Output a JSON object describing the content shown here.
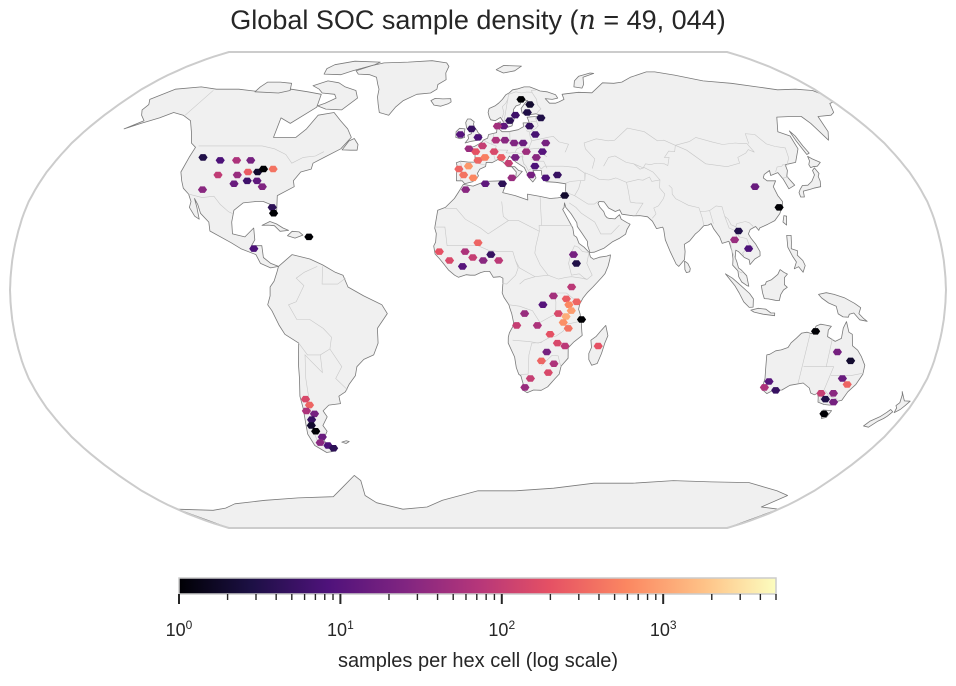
{
  "title": {
    "prefix": "Global SOC sample density  (",
    "var": "n",
    "eq": " = 49, 044",
    "suffix": ")"
  },
  "colorbar": {
    "label": "samples per hex cell (log scale)",
    "colormap": "magma",
    "scale": "log",
    "range": [
      1,
      5000
    ],
    "major_ticks": [
      {
        "base": "10",
        "exp": "0",
        "value": 1
      },
      {
        "base": "10",
        "exp": "1",
        "value": 10
      },
      {
        "base": "10",
        "exp": "2",
        "value": 100
      },
      {
        "base": "10",
        "exp": "3",
        "value": 1000
      }
    ]
  },
  "colors": {
    "land": "#f0f0f0",
    "coast": "#7a7a7a",
    "border": "#c8c8c8",
    "frame": "#cccccc"
  },
  "map": {
    "projection": "Robinson",
    "hex_cells": [
      {
        "region": "western-us",
        "lon": -118,
        "lat": 45,
        "count": 3
      },
      {
        "region": "western-us",
        "lon": -110,
        "lat": 44,
        "count": 8
      },
      {
        "region": "western-us",
        "lon": -103,
        "lat": 44,
        "count": 60
      },
      {
        "region": "western-us",
        "lon": -97,
        "lat": 44,
        "count": 20
      },
      {
        "region": "central-us",
        "lon": -108,
        "lat": 39,
        "count": 90
      },
      {
        "region": "central-us",
        "lon": -100,
        "lat": 39,
        "count": 40
      },
      {
        "region": "central-us",
        "lon": -96,
        "lat": 40,
        "count": 250
      },
      {
        "region": "central-us",
        "lon": -92,
        "lat": 40,
        "count": 2
      },
      {
        "region": "central-us",
        "lon": -90,
        "lat": 41,
        "count": 1
      },
      {
        "region": "central-us",
        "lon": -86,
        "lat": 41,
        "count": 400
      },
      {
        "region": "central-us",
        "lon": -95,
        "lat": 37,
        "count": 6
      },
      {
        "region": "central-us",
        "lon": -91,
        "lat": 37,
        "count": 12
      },
      {
        "region": "central-us",
        "lon": -100,
        "lat": 36,
        "count": 15
      },
      {
        "region": "central-us",
        "lon": -112,
        "lat": 34,
        "count": 30
      },
      {
        "region": "central-us",
        "lon": -88,
        "lat": 35,
        "count": 25
      },
      {
        "region": "florida",
        "lon": -82,
        "lat": 28,
        "count": 4
      },
      {
        "region": "florida",
        "lon": -81,
        "lat": 26,
        "count": 1
      },
      {
        "region": "caribbean",
        "lon": -66,
        "lat": 18,
        "count": 1
      },
      {
        "region": "central-america",
        "lon": -87,
        "lat": 14,
        "count": 8
      },
      {
        "region": "europe",
        "lon": -8,
        "lat": 53,
        "count": 10
      },
      {
        "region": "europe",
        "lon": -3,
        "lat": 55,
        "count": 5
      },
      {
        "region": "europe",
        "lon": 0,
        "lat": 52,
        "count": 8
      },
      {
        "region": "europe",
        "lon": 2,
        "lat": 49,
        "count": 100
      },
      {
        "region": "europe",
        "lon": -1,
        "lat": 47,
        "count": 200
      },
      {
        "region": "europe",
        "lon": -4,
        "lat": 48,
        "count": 40
      },
      {
        "region": "europe",
        "lon": 3,
        "lat": 45,
        "count": 500
      },
      {
        "region": "europe",
        "lon": 0,
        "lat": 44,
        "count": 300
      },
      {
        "region": "europe",
        "lon": -4,
        "lat": 42,
        "count": 800
      },
      {
        "region": "europe",
        "lon": -6,
        "lat": 39,
        "count": 400
      },
      {
        "region": "europe",
        "lon": -2,
        "lat": 38,
        "count": 600
      },
      {
        "region": "europe",
        "lon": -8,
        "lat": 41,
        "count": 300
      },
      {
        "region": "europe",
        "lon": 7,
        "lat": 47,
        "count": 150
      },
      {
        "region": "europe",
        "lon": 10,
        "lat": 45,
        "count": 250
      },
      {
        "region": "europe",
        "lon": 13,
        "lat": 43,
        "count": 100
      },
      {
        "region": "europe",
        "lon": 8,
        "lat": 51,
        "count": 60
      },
      {
        "region": "europe",
        "lon": 12,
        "lat": 51,
        "count": 30
      },
      {
        "region": "europe",
        "lon": 16,
        "lat": 50,
        "count": 25
      },
      {
        "region": "europe",
        "lon": 20,
        "lat": 50,
        "count": 15
      },
      {
        "region": "europe",
        "lon": 21,
        "lat": 47,
        "count": 45
      },
      {
        "region": "europe",
        "lon": 25,
        "lat": 45,
        "count": 30
      },
      {
        "region": "europe",
        "lon": 24,
        "lat": 42,
        "count": 8
      },
      {
        "region": "europe",
        "lon": 22,
        "lat": 39,
        "count": 20
      },
      {
        "region": "europe",
        "lon": 28,
        "lat": 47,
        "count": 10
      },
      {
        "region": "europe",
        "lon": 12,
        "lat": 56,
        "count": 12
      },
      {
        "region": "europe",
        "lon": 15,
        "lat": 58,
        "count": 4
      },
      {
        "region": "europe",
        "lon": 18,
        "lat": 60,
        "count": 6
      },
      {
        "region": "europe",
        "lon": 24,
        "lat": 61,
        "count": 3
      },
      {
        "region": "europe",
        "lon": 26,
        "lat": 64,
        "count": 2
      },
      {
        "region": "europe",
        "lon": 22,
        "lat": 66,
        "count": 1
      },
      {
        "region": "europe",
        "lon": 24,
        "lat": 56,
        "count": 5
      },
      {
        "region": "europe",
        "lon": 26,
        "lat": 53,
        "count": 7
      },
      {
        "region": "europe",
        "lon": 30,
        "lat": 50,
        "count": 20
      },
      {
        "region": "europe",
        "lon": 30,
        "lat": 59,
        "count": 3
      },
      {
        "region": "europe",
        "lon": 9,
        "lat": 56,
        "count": 50
      },
      {
        "region": "europe",
        "lon": 16,
        "lat": 45,
        "count": 20
      },
      {
        "region": "europe",
        "lon": 14,
        "lat": 38,
        "count": 40
      },
      {
        "region": "turkey",
        "lon": 33,
        "lat": 39,
        "count": 5
      },
      {
        "region": "turkey",
        "lon": 28,
        "lat": 38,
        "count": 8
      },
      {
        "region": "middle-east",
        "lon": 35,
        "lat": 32,
        "count": 2
      },
      {
        "region": "north-africa",
        "lon": -5,
        "lat": 34,
        "count": 30
      },
      {
        "region": "north-africa",
        "lon": 3,
        "lat": 36,
        "count": 12
      },
      {
        "region": "north-africa",
        "lon": 10,
        "lat": 36,
        "count": 4
      },
      {
        "region": "west-africa",
        "lon": -15,
        "lat": 13,
        "count": 200
      },
      {
        "region": "west-africa",
        "lon": -11,
        "lat": 10,
        "count": 150
      },
      {
        "region": "west-africa",
        "lon": -5,
        "lat": 13,
        "count": 60
      },
      {
        "region": "west-africa",
        "lon": -2,
        "lat": 11,
        "count": 100
      },
      {
        "region": "west-africa",
        "lon": 2,
        "lat": 10,
        "count": 30
      },
      {
        "region": "west-africa",
        "lon": 5,
        "lat": 12,
        "count": 5
      },
      {
        "region": "west-africa",
        "lon": 8,
        "lat": 10,
        "count": 80
      },
      {
        "region": "west-africa",
        "lon": 0,
        "lat": 16,
        "count": 300
      },
      {
        "region": "west-africa",
        "lon": -6,
        "lat": 8,
        "count": 10
      },
      {
        "region": "ethiopia",
        "lon": 38,
        "lat": 9,
        "count": 3
      },
      {
        "region": "ethiopia",
        "lon": 37,
        "lat": 12,
        "count": 20
      },
      {
        "region": "east-africa",
        "lon": 36,
        "lat": 1,
        "count": 80
      },
      {
        "region": "east-africa",
        "lon": 34,
        "lat": -3,
        "count": 250
      },
      {
        "region": "east-africa",
        "lon": 35,
        "lat": -5,
        "count": 600
      },
      {
        "region": "east-africa",
        "lon": 36,
        "lat": -7,
        "count": 900
      },
      {
        "region": "east-africa",
        "lon": 34,
        "lat": -9,
        "count": 1200
      },
      {
        "region": "east-africa",
        "lon": 33,
        "lat": -11,
        "count": 700
      },
      {
        "region": "east-africa",
        "lon": 35,
        "lat": -13,
        "count": 400
      },
      {
        "region": "east-africa",
        "lon": 31,
        "lat": -8,
        "count": 150
      },
      {
        "region": "east-africa",
        "lon": 38,
        "lat": -4,
        "count": 300
      },
      {
        "region": "east-africa",
        "lon": 29,
        "lat": -2,
        "count": 50
      },
      {
        "region": "east-africa",
        "lon": 40,
        "lat": -10,
        "count": 1
      },
      {
        "region": "central-africa",
        "lon": 25,
        "lat": -5,
        "count": 10
      },
      {
        "region": "central-africa",
        "lon": 18,
        "lat": -8,
        "count": 40
      },
      {
        "region": "central-africa",
        "lon": 15,
        "lat": -12,
        "count": 100
      },
      {
        "region": "central-africa",
        "lon": 23,
        "lat": -12,
        "count": 60
      },
      {
        "region": "southern-africa",
        "lon": 28,
        "lat": -15,
        "count": 200
      },
      {
        "region": "southern-africa",
        "lon": 31,
        "lat": -18,
        "count": 150
      },
      {
        "region": "southern-africa",
        "lon": 34,
        "lat": -19,
        "count": 80
      },
      {
        "region": "southern-africa",
        "lon": 27,
        "lat": -21,
        "count": 20
      },
      {
        "region": "southern-africa",
        "lon": 25,
        "lat": -24,
        "count": 300
      },
      {
        "region": "southern-africa",
        "lon": 30,
        "lat": -25,
        "count": 60
      },
      {
        "region": "southern-africa",
        "lon": 28,
        "lat": -28,
        "count": 150
      },
      {
        "region": "southern-africa",
        "lon": 21,
        "lat": -30,
        "count": 100
      },
      {
        "region": "southern-africa",
        "lon": 19,
        "lat": -33,
        "count": 40
      },
      {
        "region": "madagascar",
        "lon": 47,
        "lat": -19,
        "count": 200
      },
      {
        "region": "china",
        "lon": 113,
        "lat": 35,
        "count": 15
      },
      {
        "region": "china",
        "lon": 120,
        "lat": 28,
        "count": 1
      },
      {
        "region": "southeast-asia",
        "lon": 105,
        "lat": 14,
        "count": 8
      },
      {
        "region": "southeast-asia",
        "lon": 100,
        "lat": 17,
        "count": 40
      },
      {
        "region": "southeast-asia",
        "lon": 102,
        "lat": 20,
        "count": 3
      },
      {
        "region": "australia",
        "lon": 117,
        "lat": -31,
        "count": 10
      },
      {
        "region": "australia",
        "lon": 116,
        "lat": -33,
        "count": 60
      },
      {
        "region": "australia",
        "lon": 121,
        "lat": -34,
        "count": 5
      },
      {
        "region": "australia",
        "lon": 131,
        "lat": -14,
        "count": 1
      },
      {
        "region": "australia",
        "lon": 141,
        "lat": -21,
        "count": 20
      },
      {
        "region": "australia",
        "lon": 147,
        "lat": -24,
        "count": 2
      },
      {
        "region": "australia",
        "lon": 146,
        "lat": -30,
        "count": 15
      },
      {
        "region": "australia",
        "lon": 149,
        "lat": -32,
        "count": 300
      },
      {
        "region": "australia",
        "lon": 145,
        "lat": -35,
        "count": 30
      },
      {
        "region": "australia",
        "lon": 140,
        "lat": -35,
        "count": 100
      },
      {
        "region": "australia",
        "lon": 143,
        "lat": -37,
        "count": 3
      },
      {
        "region": "australia",
        "lon": 147,
        "lat": -38,
        "count": 20
      },
      {
        "region": "australia",
        "lon": 146,
        "lat": -42,
        "count": 1
      },
      {
        "region": "patagonia",
        "lon": -71,
        "lat": -37,
        "count": 150
      },
      {
        "region": "patagonia",
        "lon": -70,
        "lat": -39,
        "count": 300
      },
      {
        "region": "patagonia",
        "lon": -72,
        "lat": -41,
        "count": 60
      },
      {
        "region": "patagonia",
        "lon": -69,
        "lat": -42,
        "count": 20
      },
      {
        "region": "patagonia",
        "lon": -71,
        "lat": -44,
        "count": 5
      },
      {
        "region": "patagonia",
        "lon": -72,
        "lat": -46,
        "count": 2
      },
      {
        "region": "patagonia",
        "lon": -71,
        "lat": -48,
        "count": 1
      },
      {
        "region": "patagonia",
        "lon": -69,
        "lat": -50,
        "count": 15
      },
      {
        "region": "patagonia",
        "lon": -71,
        "lat": -52,
        "count": 30
      },
      {
        "region": "patagonia",
        "lon": -68,
        "lat": -53,
        "count": 8
      },
      {
        "region": "patagonia",
        "lon": -66,
        "lat": -54,
        "count": 4
      }
    ]
  }
}
